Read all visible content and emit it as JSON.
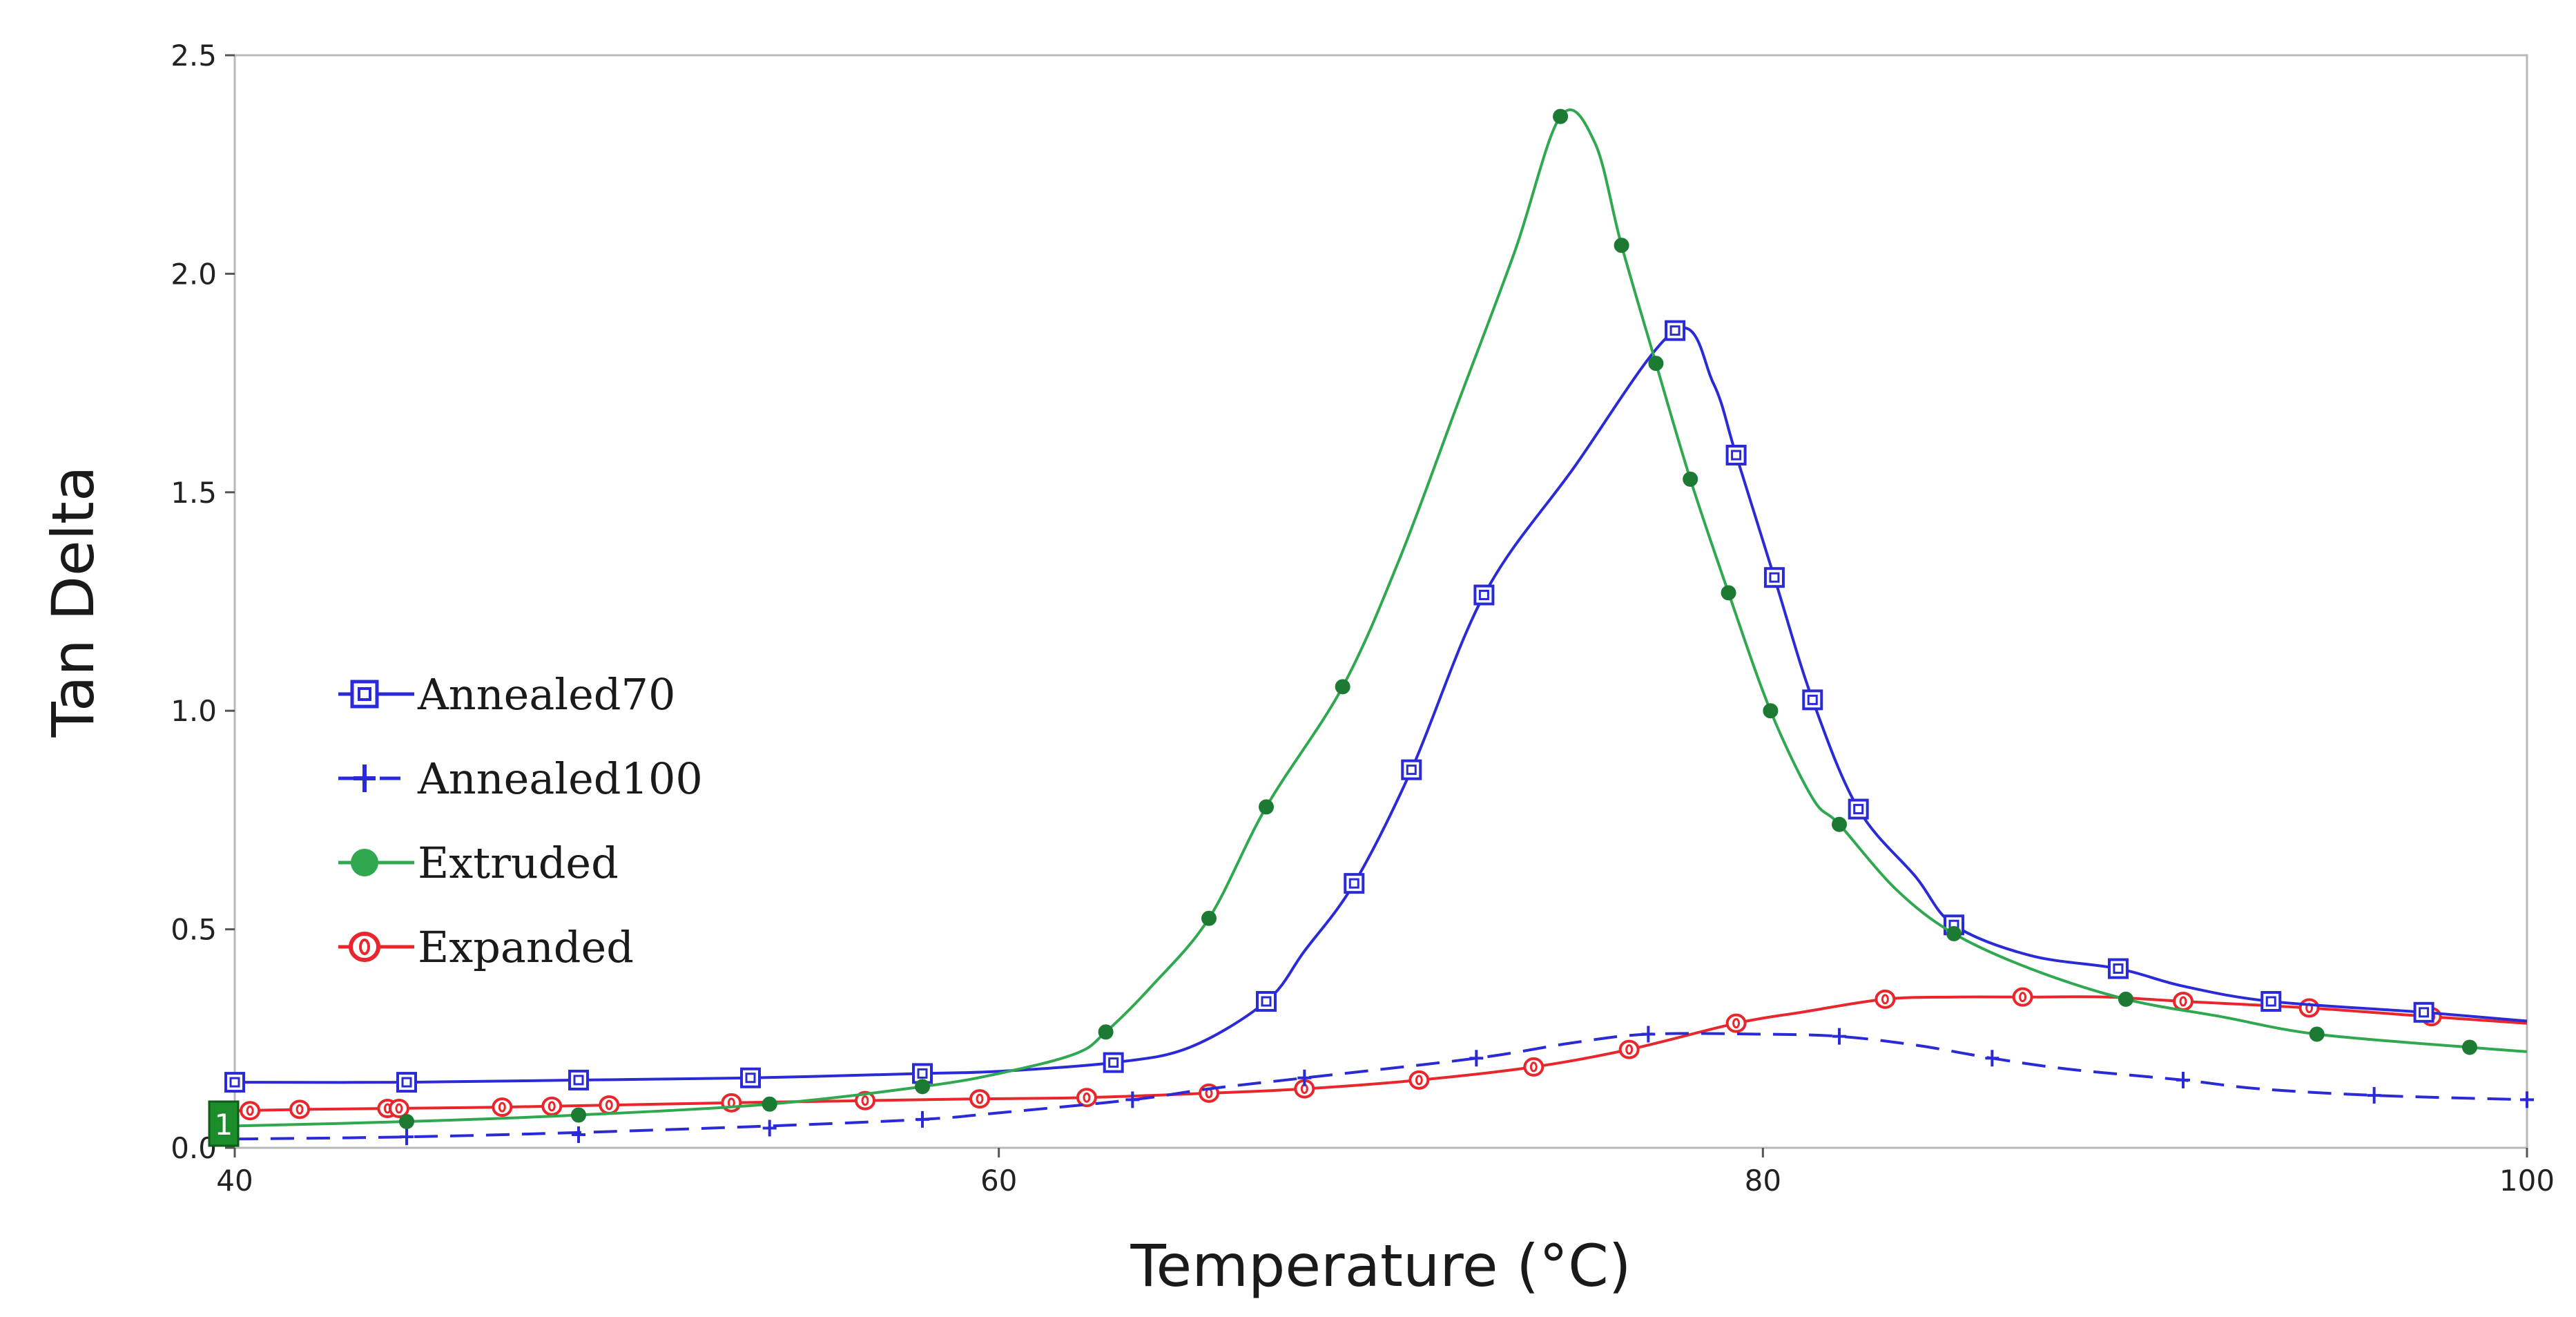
{
  "chart_data": {
    "type": "line",
    "title": "",
    "xlabel": "Temperature (°C)",
    "ylabel": "Tan Delta",
    "xlim": [
      40,
      100
    ],
    "ylim": [
      0.0,
      2.5
    ],
    "x_ticks": [
      "40",
      "60",
      "80",
      "100"
    ],
    "y_ticks": [
      "0.0",
      "0.5",
      "1.0",
      "1.5",
      "2.0",
      "2.5"
    ],
    "grid": false,
    "legend_position": "middle-left",
    "series": [
      {
        "name": "Annealed70",
        "color": "#2a2ad6",
        "marker": "square",
        "dash": "solid",
        "points": [
          [
            40,
            0.15
          ],
          [
            44.5,
            0.15
          ],
          [
            49,
            0.155
          ],
          [
            53.5,
            0.16
          ],
          [
            58,
            0.17
          ],
          [
            60,
            0.175
          ],
          [
            63,
            0.195
          ],
          [
            65,
            0.23
          ],
          [
            67,
            0.335
          ],
          [
            68,
            0.45
          ],
          [
            69.3,
            0.605
          ],
          [
            70.8,
            0.865
          ],
          [
            72.7,
            1.265
          ],
          [
            75,
            1.55
          ],
          [
            77.7,
            1.87
          ],
          [
            78.7,
            1.75
          ],
          [
            79.3,
            1.585
          ],
          [
            80.3,
            1.305
          ],
          [
            81.3,
            1.025
          ],
          [
            82.5,
            0.775
          ],
          [
            84,
            0.62
          ],
          [
            85,
            0.51
          ],
          [
            87,
            0.44
          ],
          [
            89.3,
            0.41
          ],
          [
            91,
            0.37
          ],
          [
            93.3,
            0.335
          ],
          [
            97.3,
            0.31
          ],
          [
            100,
            0.29
          ]
        ],
        "markers": [
          [
            40,
            0.15
          ],
          [
            44.5,
            0.15
          ],
          [
            49,
            0.155
          ],
          [
            53.5,
            0.16
          ],
          [
            58,
            0.17
          ],
          [
            63,
            0.195
          ],
          [
            67,
            0.335
          ],
          [
            69.3,
            0.605
          ],
          [
            70.8,
            0.865
          ],
          [
            72.7,
            1.265
          ],
          [
            77.7,
            1.87
          ],
          [
            79.3,
            1.585
          ],
          [
            80.3,
            1.305
          ],
          [
            81.3,
            1.025
          ],
          [
            82.5,
            0.775
          ],
          [
            85,
            0.51
          ],
          [
            89.3,
            0.41
          ],
          [
            93.3,
            0.335
          ],
          [
            97.3,
            0.31
          ]
        ]
      },
      {
        "name": "Annealed100",
        "color": "#2a2ad6",
        "marker": "plus",
        "dash": "dashed",
        "points": [
          [
            40,
            0.02
          ],
          [
            44.5,
            0.025
          ],
          [
            49,
            0.035
          ],
          [
            54,
            0.05
          ],
          [
            58,
            0.065
          ],
          [
            60,
            0.08
          ],
          [
            63.5,
            0.11
          ],
          [
            65.5,
            0.135
          ],
          [
            68,
            0.16
          ],
          [
            72.5,
            0.205
          ],
          [
            75,
            0.24
          ],
          [
            77,
            0.26
          ],
          [
            80,
            0.26
          ],
          [
            82,
            0.255
          ],
          [
            84,
            0.235
          ],
          [
            86,
            0.205
          ],
          [
            88,
            0.18
          ],
          [
            91,
            0.155
          ],
          [
            93,
            0.135
          ],
          [
            96,
            0.12
          ],
          [
            100,
            0.11
          ]
        ],
        "markers": [
          [
            44.5,
            0.025
          ],
          [
            49,
            0.03
          ],
          [
            54,
            0.045
          ],
          [
            58,
            0.065
          ],
          [
            63.5,
            0.11
          ],
          [
            68,
            0.16
          ],
          [
            72.5,
            0.205
          ],
          [
            77,
            0.26
          ],
          [
            82,
            0.255
          ],
          [
            86,
            0.205
          ],
          [
            91,
            0.155
          ],
          [
            96,
            0.12
          ],
          [
            100,
            0.11
          ]
        ]
      },
      {
        "name": "Extruded",
        "color": "#2fa84f",
        "marker": "circle",
        "dash": "solid",
        "points": [
          [
            40,
            0.05
          ],
          [
            44.5,
            0.06
          ],
          [
            49,
            0.075
          ],
          [
            54,
            0.1
          ],
          [
            58,
            0.14
          ],
          [
            60,
            0.17
          ],
          [
            62,
            0.215
          ],
          [
            62.8,
            0.265
          ],
          [
            64,
            0.37
          ],
          [
            65.5,
            0.525
          ],
          [
            67,
            0.78
          ],
          [
            69,
            1.055
          ],
          [
            70.5,
            1.35
          ],
          [
            72,
            1.7
          ],
          [
            73.5,
            2.05
          ],
          [
            74.7,
            2.36
          ],
          [
            75.6,
            2.3
          ],
          [
            76.3,
            2.065
          ],
          [
            77.2,
            1.795
          ],
          [
            78.1,
            1.53
          ],
          [
            79.1,
            1.27
          ],
          [
            80.2,
            1.0
          ],
          [
            81.3,
            0.8
          ],
          [
            82,
            0.74
          ],
          [
            83.5,
            0.59
          ],
          [
            85,
            0.49
          ],
          [
            87,
            0.41
          ],
          [
            89.5,
            0.34
          ],
          [
            92,
            0.3
          ],
          [
            94.5,
            0.26
          ],
          [
            98.5,
            0.23
          ],
          [
            100,
            0.22
          ]
        ],
        "markers": [
          [
            44.5,
            0.06
          ],
          [
            49,
            0.075
          ],
          [
            54,
            0.1
          ],
          [
            58,
            0.14
          ],
          [
            62.8,
            0.265
          ],
          [
            65.5,
            0.525
          ],
          [
            67,
            0.78
          ],
          [
            69,
            1.055
          ],
          [
            74.7,
            2.36
          ],
          [
            76.3,
            2.065
          ],
          [
            77.2,
            1.795
          ],
          [
            78.1,
            1.53
          ],
          [
            79.1,
            1.27
          ],
          [
            80.2,
            1.0
          ],
          [
            82,
            0.74
          ],
          [
            85,
            0.49
          ],
          [
            89.5,
            0.34
          ],
          [
            94.5,
            0.26
          ],
          [
            98.5,
            0.23
          ]
        ]
      },
      {
        "name": "Expanded",
        "color": "#e8262b",
        "marker": "circle-open",
        "dash": "solid",
        "points": [
          [
            40,
            0.085
          ],
          [
            42,
            0.088
          ],
          [
            44,
            0.09
          ],
          [
            47,
            0.093
          ],
          [
            50,
            0.098
          ],
          [
            53,
            0.103
          ],
          [
            56.5,
            0.108
          ],
          [
            59.5,
            0.112
          ],
          [
            62.3,
            0.115
          ],
          [
            65.5,
            0.125
          ],
          [
            68,
            0.135
          ],
          [
            71,
            0.155
          ],
          [
            74,
            0.185
          ],
          [
            76.5,
            0.225
          ],
          [
            79.3,
            0.285
          ],
          [
            81,
            0.31
          ],
          [
            83.2,
            0.34
          ],
          [
            85,
            0.345
          ],
          [
            87,
            0.345
          ],
          [
            89,
            0.345
          ],
          [
            91,
            0.335
          ],
          [
            94.3,
            0.32
          ],
          [
            97.5,
            0.3
          ],
          [
            100,
            0.285
          ]
        ],
        "markers": [
          [
            40.4,
            0.085
          ],
          [
            41.7,
            0.088
          ],
          [
            44,
            0.09
          ],
          [
            44.3,
            0.09
          ],
          [
            47,
            0.093
          ],
          [
            48.3,
            0.095
          ],
          [
            49.8,
            0.098
          ],
          [
            53,
            0.103
          ],
          [
            56.5,
            0.108
          ],
          [
            59.5,
            0.112
          ],
          [
            62.3,
            0.115
          ],
          [
            65.5,
            0.125
          ],
          [
            68,
            0.135
          ],
          [
            71,
            0.155
          ],
          [
            74,
            0.185
          ],
          [
            76.5,
            0.225
          ],
          [
            79.3,
            0.285
          ],
          [
            83.2,
            0.34
          ],
          [
            86.8,
            0.345
          ],
          [
            91,
            0.335
          ],
          [
            94.3,
            0.32
          ],
          [
            97.5,
            0.3
          ]
        ]
      }
    ],
    "legend": [
      "Annealed70",
      "Annealed100",
      "Extruded",
      "Expanded"
    ],
    "annotations": [
      "1"
    ]
  }
}
